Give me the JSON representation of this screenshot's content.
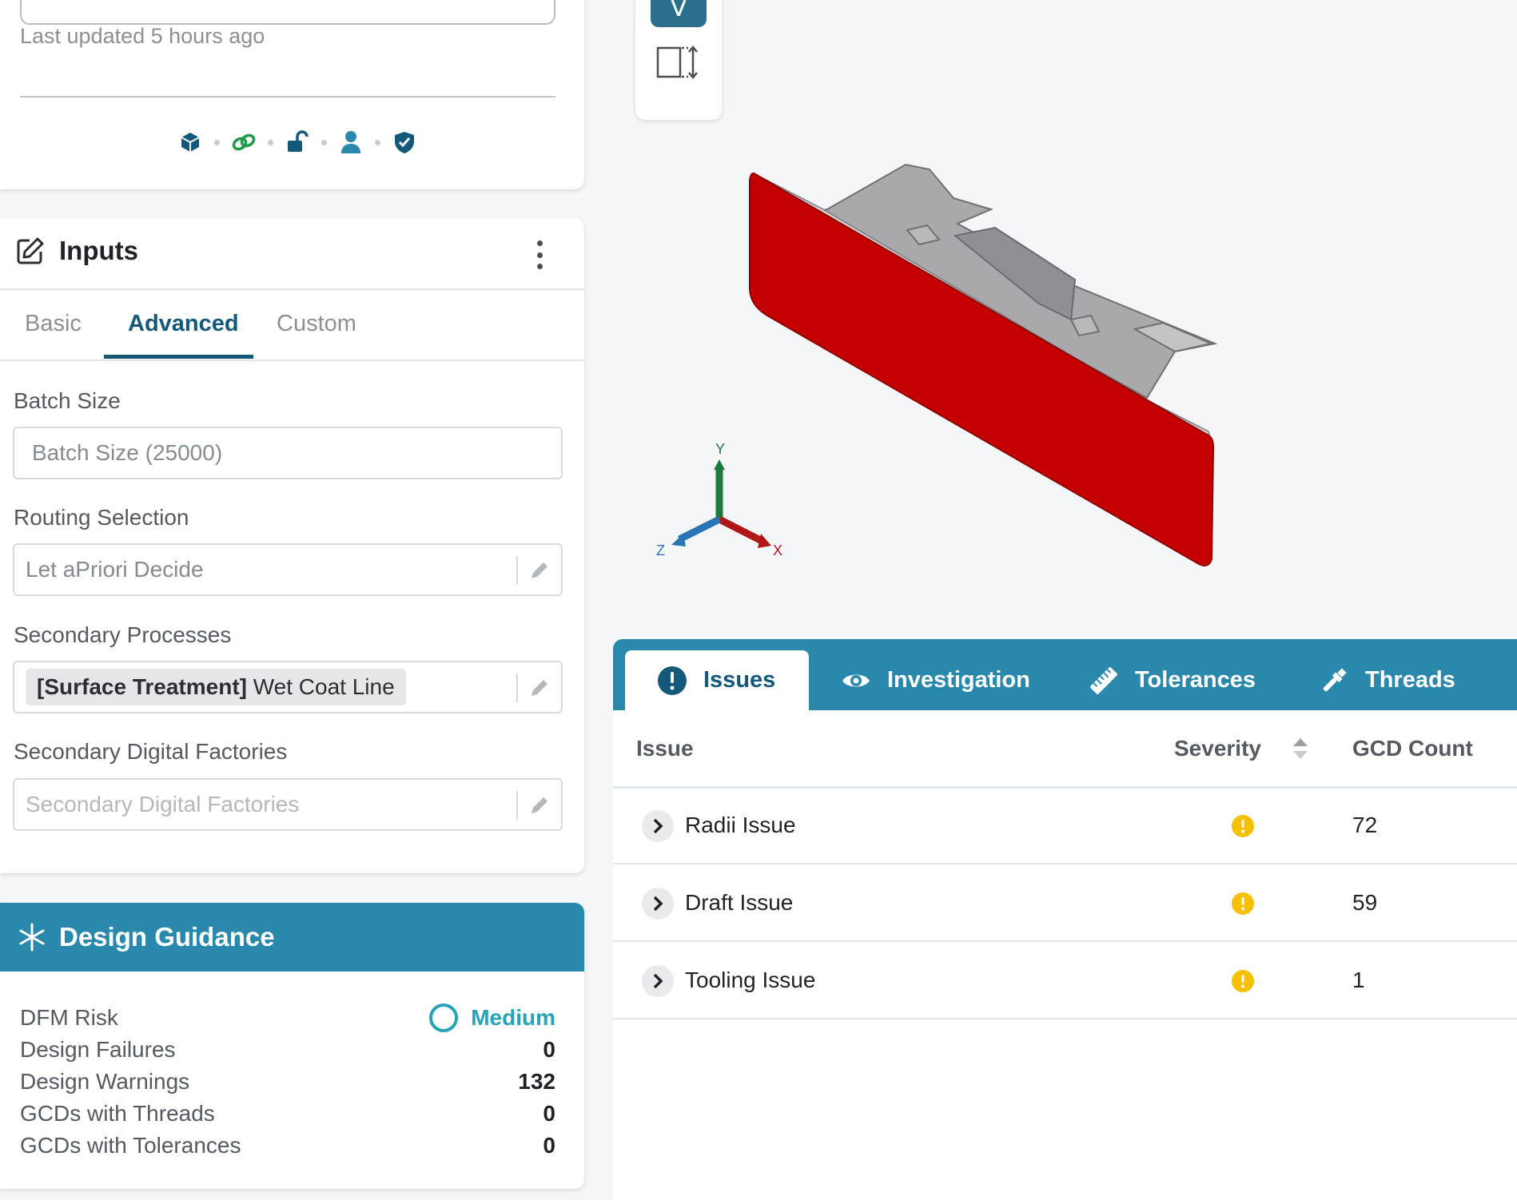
{
  "top_card": {
    "last_updated": "Last updated 5 hours ago",
    "status_icons": [
      "cube-icon",
      "link-icon",
      "unlock-icon",
      "user-icon",
      "shield-check-icon"
    ]
  },
  "inputs": {
    "title": "Inputs",
    "tabs": [
      {
        "label": "Basic",
        "active": false
      },
      {
        "label": "Advanced",
        "active": true
      },
      {
        "label": "Custom",
        "active": false
      }
    ],
    "batch_size": {
      "label": "Batch Size",
      "placeholder": "Batch Size (25000)"
    },
    "routing": {
      "label": "Routing Selection",
      "value": "Let aPriori Decide"
    },
    "secondary_processes": {
      "label": "Secondary Processes",
      "chip_bold": "[Surface Treatment]",
      "chip_text": " Wet Coat Line"
    },
    "secondary_factories": {
      "label": "Secondary Digital Factories",
      "placeholder": "Secondary Digital Factories"
    }
  },
  "design_guidance": {
    "title": "Design Guidance",
    "rows": [
      {
        "label": "DFM Risk",
        "value": "Medium"
      },
      {
        "label": "Design Failures",
        "value": "0"
      },
      {
        "label": "Design Warnings",
        "value": "132"
      },
      {
        "label": "GCDs with Threads",
        "value": "0"
      },
      {
        "label": "GCDs with Tolerances",
        "value": "0"
      }
    ]
  },
  "axes": {
    "x": "X",
    "y": "Y",
    "z": "Z"
  },
  "issues_panel": {
    "tabs": [
      {
        "label": "Issues",
        "icon": "exclamation-icon",
        "active": true
      },
      {
        "label": "Investigation",
        "icon": "eye-icon",
        "active": false
      },
      {
        "label": "Tolerances",
        "icon": "ruler-icon",
        "active": false
      },
      {
        "label": "Threads",
        "icon": "screwdriver-icon",
        "active": false
      }
    ],
    "columns": {
      "issue": "Issue",
      "severity": "Severity",
      "count": "GCD Count"
    },
    "rows": [
      {
        "issue": "Radii Issue",
        "severity": "warning",
        "count": "72"
      },
      {
        "issue": "Draft Issue",
        "severity": "warning",
        "count": "59"
      },
      {
        "issue": "Tooling Issue",
        "severity": "warning",
        "count": "1"
      }
    ]
  },
  "colors": {
    "accent": "#2b88ad",
    "accent_dark": "#14587a",
    "part_red": "#c40000",
    "warning": "#f5c000",
    "risk_medium": "#27a3b8"
  }
}
